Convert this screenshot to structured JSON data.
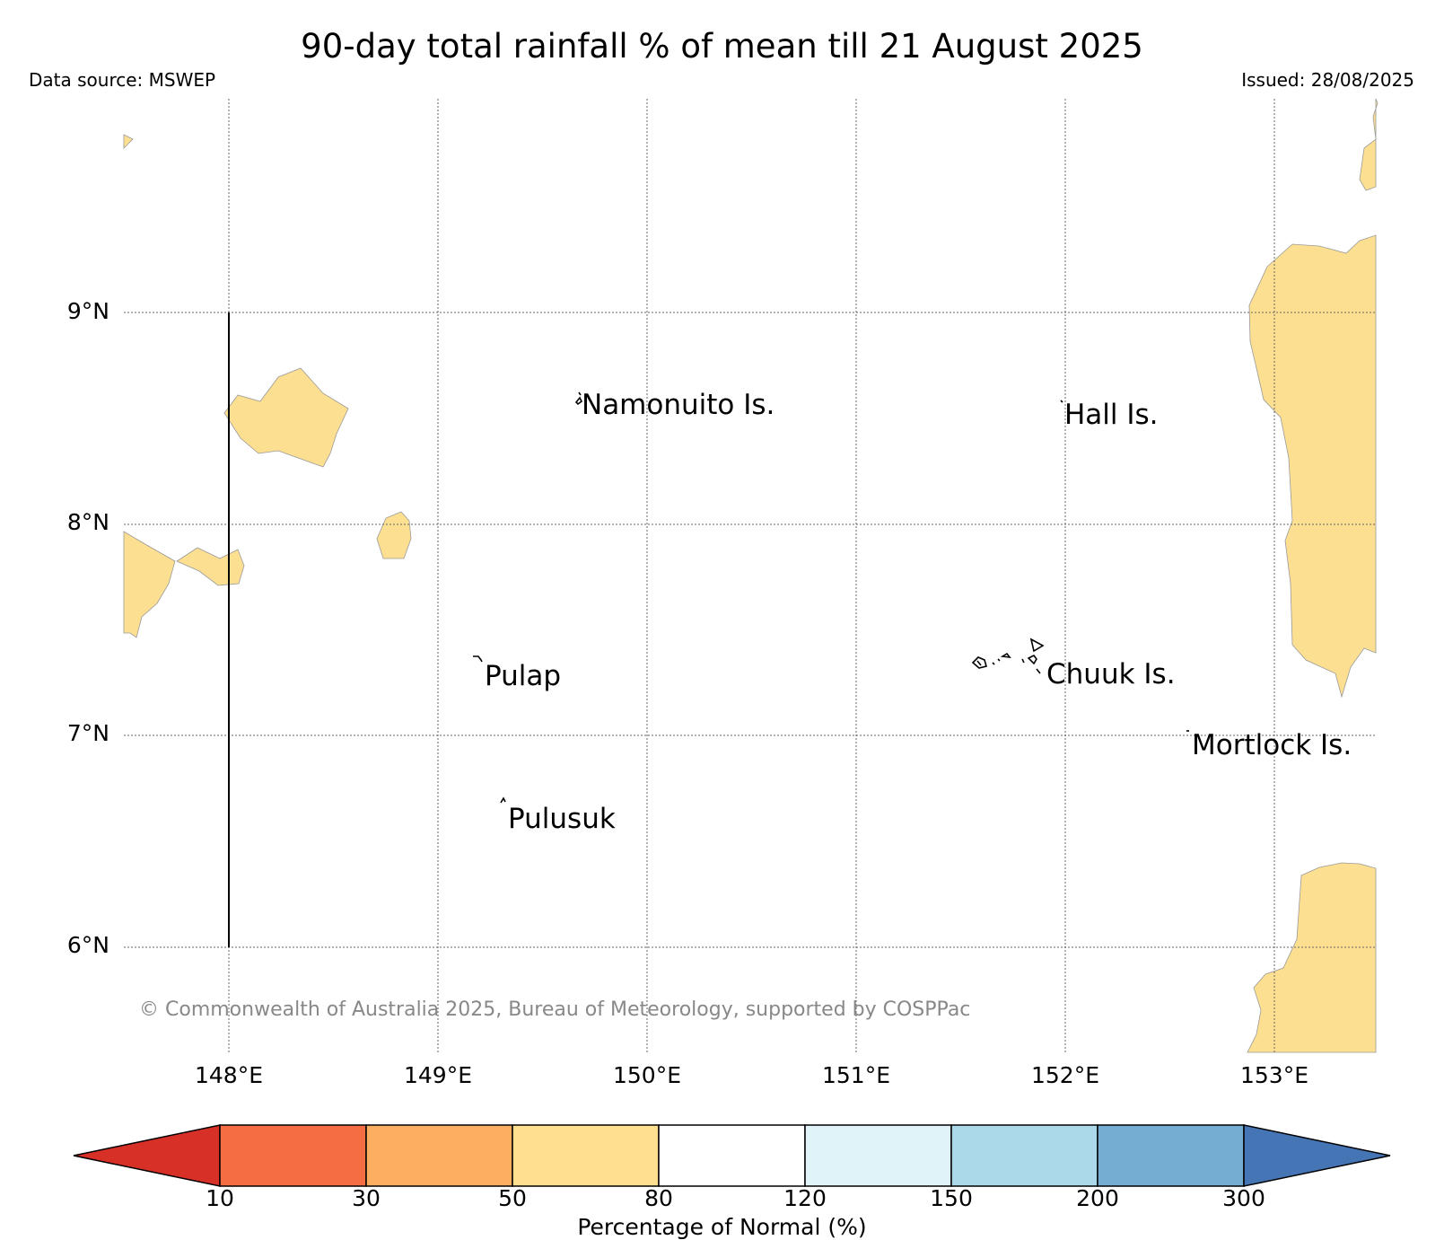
{
  "title": "90-day total rainfall % of mean till 21 August 2025",
  "data_source": "Data source: MSWEP",
  "issued": "Issued: 28/08/2025",
  "copyright": "© Commonwealth of Australia 2025, Bureau of Meteorology, supported by COSPPac",
  "map": {
    "lat_labels": [
      "9°N",
      "8°N",
      "7°N",
      "6°N"
    ],
    "lon_labels": [
      "148°E",
      "149°E",
      "150°E",
      "151°E",
      "152°E",
      "153°E"
    ],
    "places": [
      "Namonuito Is.",
      "Hall Is.",
      "Pulap",
      "Chuuk Is.",
      "Mortlock Is.",
      "Pulusuk"
    ],
    "anomaly_fill": "#fddf92",
    "anomaly_category": "50–80%"
  },
  "colorbar": {
    "title": "Percentage of Normal (%)",
    "ticks": [
      "10",
      "30",
      "50",
      "80",
      "120",
      "150",
      "200",
      "300"
    ],
    "colors": [
      "#d73027",
      "#f46d43",
      "#fdae61",
      "#fee090",
      "#ffffff",
      "#e0f3f8",
      "#abd9e9",
      "#74add1",
      "#4575b4"
    ]
  }
}
